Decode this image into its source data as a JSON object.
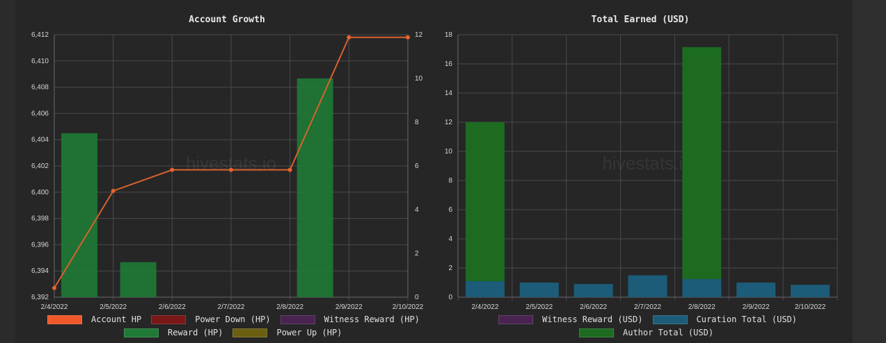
{
  "chart_data": [
    {
      "type": "bar+line",
      "title": "Account Growth",
      "categories": [
        "2/4/2022",
        "2/5/2022",
        "2/6/2022",
        "2/7/2022",
        "2/8/2022",
        "2/9/2022",
        "2/10/2022"
      ],
      "y_left": {
        "min": 6392,
        "max": 6412,
        "step": 2,
        "ticks": [
          "6,392",
          "6,394",
          "6,396",
          "6,398",
          "6,400",
          "6,402",
          "6,404",
          "6,406",
          "6,408",
          "6,410",
          "6,412"
        ]
      },
      "y_right": {
        "min": 0,
        "max": 12,
        "step": 2,
        "ticks": [
          "0",
          "2",
          "4",
          "6",
          "8",
          "10",
          "12"
        ]
      },
      "series": [
        {
          "name": "Account HP",
          "kind": "line",
          "axis": "left",
          "color": "#e8632c",
          "values": [
            6392.7,
            6400.1,
            6401.7,
            6401.7,
            6401.7,
            6411.8,
            6411.8
          ]
        },
        {
          "name": "Reward (HP)",
          "kind": "bar",
          "axis": "right",
          "color": "#1f7a36",
          "values": [
            7.5,
            1.6,
            0,
            0,
            10.0,
            0,
            0
          ]
        }
      ],
      "legend": [
        {
          "label": "Account HP",
          "color": "#f0582a"
        },
        {
          "label": "Power Down (HP)",
          "color": "#7a1818"
        },
        {
          "label": "Witness Reward (HP)",
          "color": "#4a2450"
        },
        {
          "label": "Reward (HP)",
          "color": "#1f7a36"
        },
        {
          "label": "Power Up (HP)",
          "color": "#6b5f12"
        }
      ],
      "legend_position": "bottom",
      "grid": true,
      "watermark": "hivestats.io"
    },
    {
      "type": "stacked-bar",
      "title": "Total Earned (USD)",
      "categories": [
        "2/4/2022",
        "2/5/2022",
        "2/6/2022",
        "2/7/2022",
        "2/8/2022",
        "2/9/2022",
        "2/10/2022"
      ],
      "y": {
        "min": 0,
        "max": 18,
        "step": 2,
        "ticks": [
          "0",
          "2",
          "4",
          "6",
          "8",
          "10",
          "12",
          "14",
          "16",
          "18"
        ]
      },
      "series": [
        {
          "name": "Curation Total (USD)",
          "color": "#1c5c78",
          "values": [
            1.1,
            1.0,
            0.9,
            1.5,
            1.25,
            1.0,
            0.85
          ]
        },
        {
          "name": "Author Total (USD)",
          "color": "#1d6b21",
          "values": [
            10.9,
            0,
            0,
            0,
            15.9,
            0,
            0
          ]
        }
      ],
      "legend": [
        {
          "label": "Witness Reward (USD)",
          "color": "#4a2450"
        },
        {
          "label": "Curation Total (USD)",
          "color": "#1c5c78"
        },
        {
          "label": "Author Total (USD)",
          "color": "#1d6b21"
        }
      ],
      "legend_position": "bottom",
      "grid": true,
      "watermark": "hivestats.io"
    }
  ]
}
